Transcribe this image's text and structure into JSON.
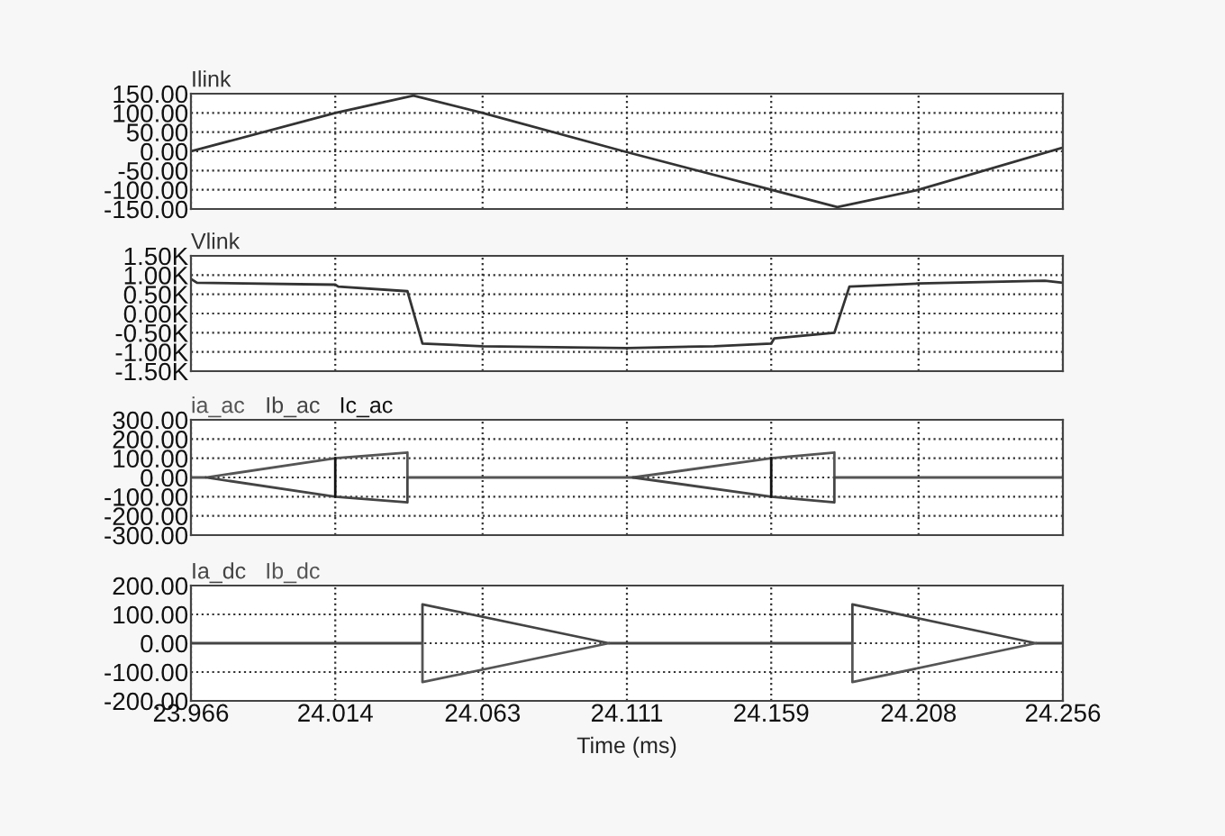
{
  "chart_data": [
    {
      "type": "line",
      "xlim": [
        23.966,
        24.256
      ],
      "xticks": [
        {
          "value": 23.966,
          "label": null
        },
        {
          "value": 24.014,
          "label": null
        },
        {
          "value": 24.063,
          "label": null
        },
        {
          "value": 24.111,
          "label": null
        },
        {
          "value": 24.159,
          "label": null
        },
        {
          "value": 24.208,
          "label": null
        },
        {
          "value": 24.256,
          "label": null
        }
      ],
      "ylim": [
        -150,
        150
      ],
      "yticks": [
        {
          "value": 150,
          "label": "150.00"
        },
        {
          "value": 100,
          "label": "100.00"
        },
        {
          "value": 50,
          "label": "50.00"
        },
        {
          "value": 0,
          "label": "0.00"
        },
        {
          "value": -50,
          "label": "-50.00"
        },
        {
          "value": -100,
          "label": "-100.00"
        },
        {
          "value": -150,
          "label": "-150.00"
        }
      ],
      "tick_labels": "y",
      "grid": true,
      "line_style": "solid",
      "marker": "none",
      "series": [
        {
          "name": "Ilink",
          "color": "#333333",
          "x": [
            23.966,
            24.014,
            24.04,
            24.063,
            24.11,
            24.159,
            24.181,
            24.208,
            24.256
          ],
          "values": [
            0,
            100,
            145,
            100,
            0,
            -100,
            -145,
            -100,
            10
          ]
        }
      ]
    },
    {
      "type": "line",
      "xlim": [
        23.966,
        24.256
      ],
      "xticks": [
        {
          "value": 23.966,
          "label": null
        },
        {
          "value": 24.014,
          "label": null
        },
        {
          "value": 24.063,
          "label": null
        },
        {
          "value": 24.111,
          "label": null
        },
        {
          "value": 24.159,
          "label": null
        },
        {
          "value": 24.208,
          "label": null
        },
        {
          "value": 24.256,
          "label": null
        }
      ],
      "ylim": [
        -1.5,
        1.5
      ],
      "yticks": [
        {
          "value": 1.5,
          "label": "1.50K"
        },
        {
          "value": 1.0,
          "label": "1.00K"
        },
        {
          "value": 0.5,
          "label": "0.50K"
        },
        {
          "value": 0,
          "label": "0.00K"
        },
        {
          "value": -0.5,
          "label": "-0.50K"
        },
        {
          "value": -1.0,
          "label": "-1.00K"
        },
        {
          "value": -1.5,
          "label": "-1.50K"
        }
      ],
      "tick_labels": "y",
      "grid": true,
      "line_style": "solid",
      "marker": "none",
      "series": [
        {
          "name": "Vlink",
          "color": "#333333",
          "x": [
            23.966,
            23.968,
            24.014,
            24.015,
            24.038,
            24.043,
            24.063,
            24.111,
            24.14,
            24.159,
            24.16,
            24.18,
            24.185,
            24.208,
            24.25,
            24.256
          ],
          "values": [
            0.9,
            0.8,
            0.75,
            0.7,
            0.58,
            -0.78,
            -0.85,
            -0.9,
            -0.85,
            -0.78,
            -0.65,
            -0.5,
            0.7,
            0.78,
            0.85,
            0.8
          ]
        }
      ]
    },
    {
      "type": "line",
      "xlim": [
        23.966,
        24.256
      ],
      "xticks": [
        {
          "value": 23.966,
          "label": null
        },
        {
          "value": 24.014,
          "label": null
        },
        {
          "value": 24.063,
          "label": null
        },
        {
          "value": 24.111,
          "label": null
        },
        {
          "value": 24.159,
          "label": null
        },
        {
          "value": 24.208,
          "label": null
        },
        {
          "value": 24.256,
          "label": null
        }
      ],
      "ylim": [
        -300,
        300
      ],
      "yticks": [
        {
          "value": 300,
          "label": "300.00"
        },
        {
          "value": 200,
          "label": "200.00"
        },
        {
          "value": 100,
          "label": "100.00"
        },
        {
          "value": 0,
          "label": "0.00"
        },
        {
          "value": -100,
          "label": "-100.00"
        },
        {
          "value": -200,
          "label": "-200.00"
        },
        {
          "value": -300,
          "label": "-300.00"
        }
      ],
      "tick_labels": "y",
      "grid": true,
      "line_style": "solid",
      "marker": "none",
      "series": [
        {
          "name": "ia_ac",
          "color": "#555555",
          "x": [
            23.966,
            23.971,
            24.014,
            24.038,
            24.038,
            24.113,
            24.159,
            24.18,
            24.18,
            24.256
          ],
          "values": [
            0,
            0,
            100,
            130,
            0,
            0,
            100,
            130,
            0,
            0
          ]
        },
        {
          "name": "Ib_ac",
          "color": "#444444",
          "x": [
            23.971,
            24.014,
            24.038,
            24.038,
            24.08,
            24.113,
            24.159,
            24.18,
            24.18
          ],
          "values": [
            0,
            -100,
            -130,
            0,
            null,
            0,
            -100,
            -130,
            0
          ]
        },
        {
          "name": "Ic_ac",
          "color": "#111111",
          "x": [
            24.014,
            24.014,
            24.08,
            24.159,
            24.159
          ],
          "values": [
            -100,
            100,
            null,
            -100,
            100
          ]
        }
      ]
    },
    {
      "type": "line",
      "xlim": [
        23.966,
        24.256
      ],
      "xticks": [
        23.966,
        24.014,
        24.063,
        24.111,
        24.159,
        24.208,
        24.256
      ],
      "ylim": [
        -200,
        200
      ],
      "yticks": [
        {
          "value": 200,
          "label": "200.00"
        },
        {
          "value": 100,
          "label": "100.00"
        },
        {
          "value": 0,
          "label": "0.00"
        },
        {
          "value": -100,
          "label": "-100.00"
        },
        {
          "value": -200,
          "label": "-200.00"
        }
      ],
      "grid": true,
      "line_style": "solid",
      "marker": "none",
      "xlabel": "Time (ms)",
      "series": [
        {
          "name": "Ia_dc",
          "color": "#444444",
          "x": [
            23.966,
            24.043,
            24.043,
            24.105,
            24.186,
            24.186,
            24.247,
            24.256
          ],
          "values": [
            0,
            0,
            135,
            0,
            0,
            135,
            0,
            0
          ]
        },
        {
          "name": "Ib_dc",
          "color": "#555555",
          "x": [
            24.043,
            24.043,
            24.105,
            24.15,
            24.186,
            24.186,
            24.247
          ],
          "values": [
            0,
            -135,
            0,
            null,
            0,
            -135,
            0
          ]
        }
      ]
    }
  ]
}
